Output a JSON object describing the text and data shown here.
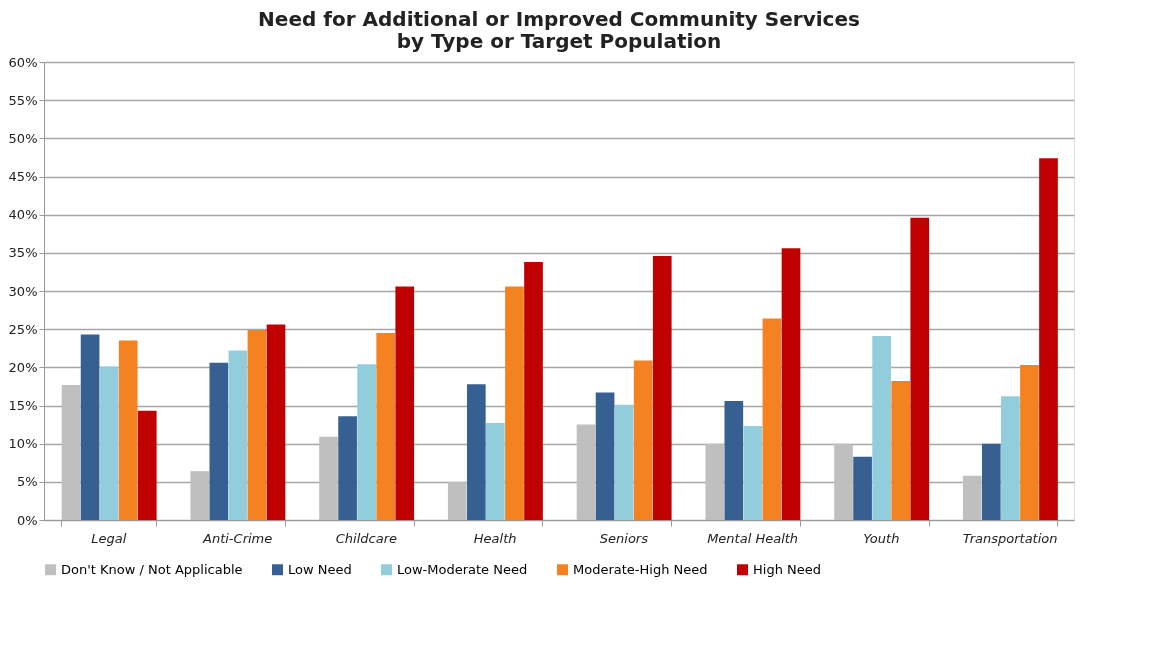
{
  "chart_data": {
    "type": "bar",
    "title": [
      "Need for Additional or Improved Community Services",
      "by Type or Target Population"
    ],
    "categories": [
      "Legal",
      "Anti-Crime",
      "Childcare",
      "Health",
      "Seniors",
      "Mental Health",
      "Youth",
      "Transportation"
    ],
    "series": [
      {
        "name": "Don't Know / Not Applicable",
        "color": "#bfbfbf",
        "values": [
          17.7,
          6.4,
          10.9,
          5.0,
          12.5,
          10.0,
          10.0,
          5.8
        ]
      },
      {
        "name": "Low Need",
        "color": "#366092",
        "values": [
          24.3,
          20.6,
          13.6,
          17.8,
          16.7,
          15.6,
          8.3,
          10.0
        ]
      },
      {
        "name": "Low-Moderate Need",
        "color": "#92cddc",
        "values": [
          20.1,
          22.2,
          20.4,
          12.7,
          15.1,
          12.3,
          24.1,
          16.2
        ]
      },
      {
        "name": "Moderate-High Need",
        "color": "#f58220",
        "values": [
          23.5,
          24.9,
          24.5,
          30.6,
          20.9,
          26.4,
          18.2,
          20.3
        ]
      },
      {
        "name": "High Need",
        "color": "#c00000",
        "values": [
          14.3,
          25.6,
          30.6,
          33.8,
          34.6,
          35.6,
          39.6,
          47.4
        ]
      }
    ],
    "ylim": [
      0,
      60
    ],
    "yticks": [
      {
        "value": 0,
        "label": "0%"
      },
      {
        "value": 5,
        "label": "5%"
      },
      {
        "value": 10,
        "label": "10%"
      },
      {
        "value": 15,
        "label": "15%"
      },
      {
        "value": 20,
        "label": "20%"
      },
      {
        "value": 25,
        "label": "25%"
      },
      {
        "value": 30,
        "label": "30%"
      },
      {
        "value": 35,
        "label": "35%"
      },
      {
        "value": 40,
        "label": "40%"
      },
      {
        "value": 45,
        "label": "45%"
      },
      {
        "value": 50,
        "label": "50%"
      },
      {
        "value": 55,
        "label": "55%"
      },
      {
        "value": 60,
        "label": "60%"
      }
    ],
    "grid": "y",
    "legend": "bottom"
  }
}
